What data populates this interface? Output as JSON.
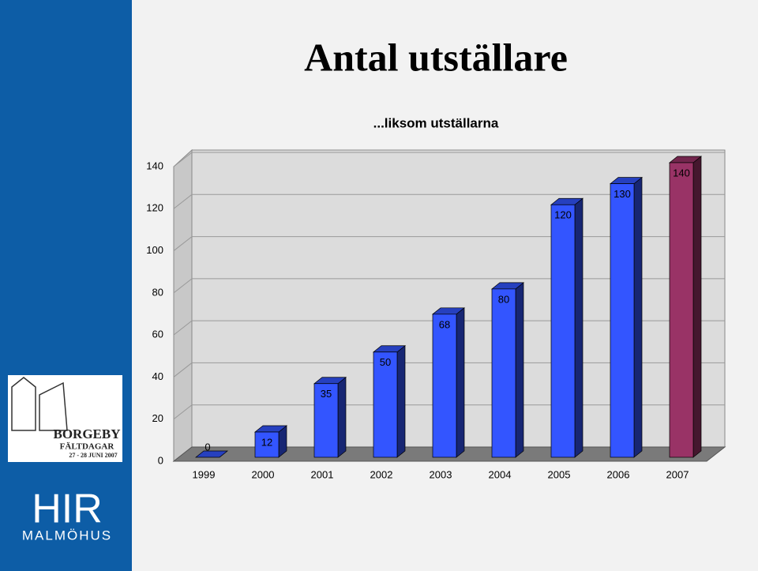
{
  "chart_data": {
    "type": "bar3d",
    "title": "Antal utställare",
    "subtitle": "...liksom utställarna",
    "categories": [
      "1999",
      "2000",
      "2001",
      "2002",
      "2003",
      "2004",
      "2005",
      "2006",
      "2007"
    ],
    "values": [
      0,
      12,
      35,
      50,
      68,
      80,
      120,
      130,
      140
    ],
    "colors": [
      "#3355ff",
      "#3355ff",
      "#3355ff",
      "#3355ff",
      "#3355ff",
      "#3355ff",
      "#3355ff",
      "#3355ff",
      "#993366"
    ],
    "ylim": [
      0,
      140
    ],
    "yticks": [
      0,
      20,
      40,
      60,
      80,
      100,
      120,
      140
    ],
    "grid": true
  },
  "logos": {
    "borgeby": [
      "BORGEBY",
      "FÄLTDAGAR",
      "27 - 28 JUNI 2007"
    ],
    "hir": "HIR",
    "hir_sub": "MALMÖHUS"
  }
}
